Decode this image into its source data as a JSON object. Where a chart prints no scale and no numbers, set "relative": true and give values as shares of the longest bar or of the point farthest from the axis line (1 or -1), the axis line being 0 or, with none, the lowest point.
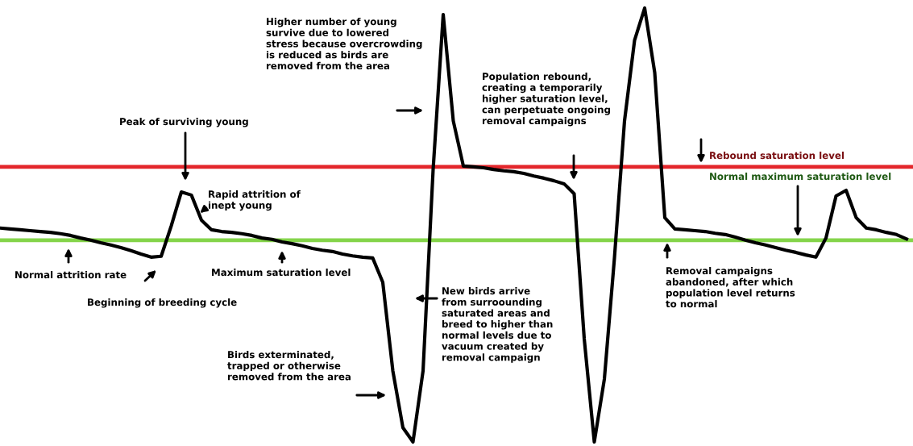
{
  "chart_data": {
    "type": "line",
    "relative": true,
    "legend": false,
    "marker": "none",
    "line_style": "solid",
    "categories": [
      null,
      null,
      null,
      null,
      null,
      null,
      null,
      null,
      null,
      null,
      null,
      null,
      null,
      null,
      null,
      null,
      null,
      null,
      null,
      null,
      null,
      null,
      null,
      null,
      null,
      null,
      null,
      null,
      null,
      null,
      null,
      null,
      null,
      null,
      null,
      null,
      null,
      null,
      null,
      null,
      null,
      null,
      null,
      null,
      null,
      null,
      null,
      null,
      null,
      null,
      null,
      null,
      null,
      null,
      null,
      null,
      null,
      null,
      null,
      null,
      null,
      null,
      null,
      null,
      null,
      null,
      null,
      null,
      null,
      null,
      null,
      null,
      null,
      null,
      null,
      null,
      null,
      null,
      null,
      null,
      null,
      null,
      null,
      null,
      null,
      null,
      null,
      null,
      null,
      null,
      null
    ],
    "series": [
      {
        "color": "#000000",
        "values": [
          0.493,
          0.491,
          0.489,
          0.487,
          0.485,
          0.483,
          0.48,
          0.476,
          0.47,
          0.465,
          0.459,
          0.454,
          0.448,
          0.441,
          0.433,
          0.426,
          0.428,
          0.498,
          0.576,
          0.569,
          0.511,
          0.489,
          0.485,
          0.483,
          0.48,
          0.476,
          0.47,
          0.467,
          0.461,
          0.457,
          0.452,
          0.446,
          0.442,
          0.439,
          0.433,
          0.429,
          0.426,
          0.424,
          0.368,
          0.164,
          0.033,
          0,
          0.164,
          0.628,
          0.985,
          0.74,
          0.636,
          0.634,
          0.632,
          0.628,
          0.625,
          0.623,
          0.619,
          0.613,
          0.608,
          0.602,
          0.595,
          0.572,
          0.238,
          0,
          0.145,
          0.424,
          0.74,
          0.926,
          1,
          0.851,
          0.517,
          0.491,
          0.489,
          0.487,
          0.485,
          0.481,
          0.478,
          0.472,
          0.465,
          0.459,
          0.454,
          0.448,
          0.442,
          0.437,
          0.431,
          0.426,
          0.47,
          0.567,
          0.58,
          0.517,
          0.493,
          0.489,
          0.483,
          0.478,
          0.468
        ]
      }
    ],
    "ref_lines": [
      {
        "axis": "y",
        "value": 0.634,
        "label": "Rebound saturation level",
        "color": "#e3262b"
      },
      {
        "axis": "y",
        "value": 0.465,
        "label": "Normal maximum saturation level",
        "color": "#84d44a"
      }
    ],
    "annotations": [
      "Peak of surviving young",
      "Rapid attrition of\ninept young",
      "Normal attrition rate",
      "Beginning of breeding cycle",
      "Maximum saturation level",
      "Higher number of young\nsurvive due to lowered\nstress because overcrowding\nis reduced as birds are\nremoved from the area",
      "Population rebound,\ncreating a temporarily\nhigher saturation level,\ncan perpetuate ongoing\nremoval campaigns",
      "New birds arrive\nfrom surroounding\nsaturated areas and\nbreed to higher than\nnormal levels due to\nvacuum created by\nremoval campaign",
      "Birds exterminated,\ntrapped or otherwise\nremoved from the area",
      "Removal campaigns\nabandoned, after which\npopulation level returns\nto normal"
    ]
  }
}
